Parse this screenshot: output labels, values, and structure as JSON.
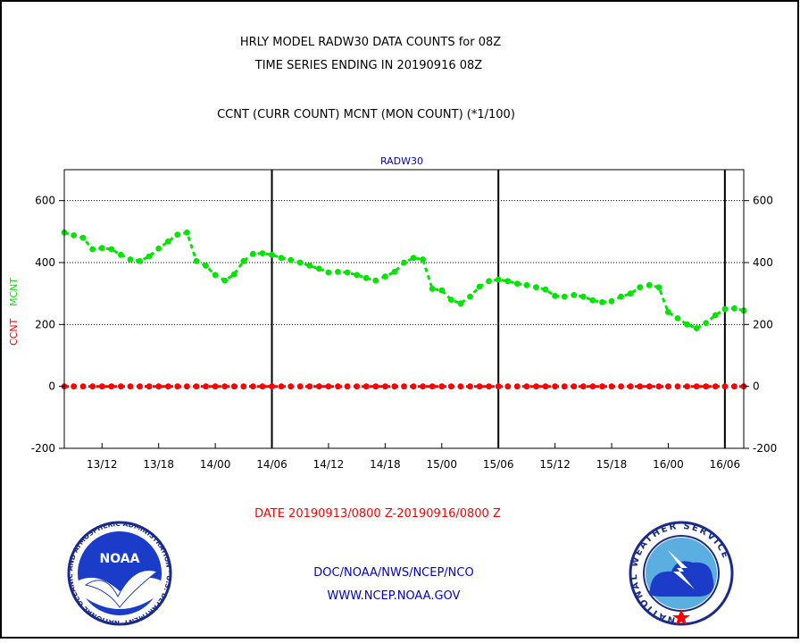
{
  "header": {
    "title_line1": "HRLY MODEL RADW30 DATA COUNTS for 08Z",
    "title_line2": "TIME SERIES ENDING IN 20190916 08Z",
    "subtitle": "CCNT (CURR COUNT) MCNT (MON COUNT) (*1/100)"
  },
  "footer": {
    "date_range": "DATE 20190913/0800 Z-20190916/0800 Z",
    "org": "DOC/NOAA/NWS/NCEP/NCO",
    "url": "WWW.NCEP.NOAA.GOV",
    "noaa_logo_text": "NOAA",
    "noaa_ring_text": "NATIONAL OCEANIC AND ATMOSPHERIC ADMINISTRATION · U.S. DEPARTMENT OF COMMERCE ·",
    "nws_ring_text": "NATIONAL WEATHER SERVICE"
  },
  "colors": {
    "ccnt": "#ff0000",
    "mcnt": "#00e600",
    "label_blue": "#0000cc",
    "date_red": "#ff0000"
  },
  "chart_data": {
    "type": "line",
    "panel_label": "RADW30",
    "ylabel_ccnt": "CCNT",
    "ylabel_mcnt": "MCNT",
    "ylim": [
      -200,
      700
    ],
    "yticks": [
      -200,
      0,
      200,
      400,
      600
    ],
    "grid_y": [
      200,
      400,
      600
    ],
    "xlim_hours": [
      0,
      72
    ],
    "xticks": [
      {
        "label": "13/12",
        "hour": 4
      },
      {
        "label": "13/18",
        "hour": 10
      },
      {
        "label": "14/00",
        "hour": 16
      },
      {
        "label": "14/06",
        "hour": 22
      },
      {
        "label": "14/12",
        "hour": 28
      },
      {
        "label": "14/18",
        "hour": 34
      },
      {
        "label": "15/00",
        "hour": 40
      },
      {
        "label": "15/06",
        "hour": 46
      },
      {
        "label": "15/12",
        "hour": 52
      },
      {
        "label": "15/18",
        "hour": 58
      },
      {
        "label": "16/00",
        "hour": 64
      },
      {
        "label": "16/06",
        "hour": 70
      }
    ],
    "day_dividers_hours": [
      22,
      46,
      70
    ],
    "series": [
      {
        "name": "MCNT",
        "values": [
          497,
          488,
          480,
          443,
          447,
          443,
          425,
          410,
          405,
          420,
          445,
          468,
          490,
          497,
          405,
          390,
          360,
          342,
          362,
          405,
          428,
          430,
          425,
          415,
          408,
          400,
          390,
          380,
          368,
          370,
          368,
          360,
          350,
          342,
          355,
          370,
          400,
          415,
          410,
          315,
          310,
          280,
          268,
          290,
          322,
          340,
          345,
          340,
          332,
          327,
          320,
          313,
          292,
          290,
          295,
          290,
          278,
          272,
          275,
          290,
          300,
          320,
          327,
          320,
          240,
          220,
          200,
          188,
          205,
          230,
          250,
          252,
          245
        ]
      },
      {
        "name": "CCNT",
        "values": [
          0,
          0,
          0,
          0,
          0,
          0,
          0,
          0,
          0,
          0,
          0,
          0,
          0,
          0,
          0,
          0,
          0,
          0,
          0,
          0,
          0,
          0,
          0,
          0,
          0,
          0,
          0,
          0,
          0,
          0,
          0,
          0,
          0,
          0,
          0,
          0,
          0,
          0,
          0,
          0,
          0,
          0,
          0,
          0,
          0,
          0,
          0,
          0,
          0,
          0,
          0,
          0,
          0,
          0,
          0,
          0,
          0,
          0,
          0,
          0,
          0,
          0,
          0,
          0,
          0,
          0,
          0,
          0,
          0,
          0,
          0,
          0,
          0
        ]
      }
    ]
  }
}
